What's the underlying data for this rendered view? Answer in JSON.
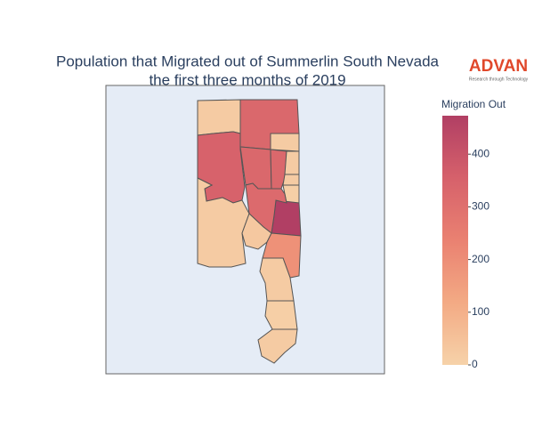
{
  "chart_data": {
    "type": "choropleth",
    "title": [
      "Population that Migrated out of Summerlin South Nevada",
      "the first three months of 2019"
    ],
    "logo": {
      "name": "ADVAN",
      "tagline": "Research through Technology"
    },
    "colorbar": {
      "title": "Migration Out",
      "range": [
        0,
        473
      ],
      "ticks": [
        0,
        100,
        200,
        300,
        400
      ]
    },
    "colorscale": [
      [
        0,
        "#f6d2a9"
      ],
      [
        0.25,
        "#f3aa84"
      ],
      [
        0.5,
        "#ea8171"
      ],
      [
        0.75,
        "#d6616b"
      ],
      [
        1,
        "#b13f64"
      ]
    ],
    "values": [
      20,
      330,
      20,
      350,
      330,
      330,
      20,
      20,
      10,
      473,
      320,
      20,
      30,
      190,
      20,
      10,
      20
    ]
  }
}
